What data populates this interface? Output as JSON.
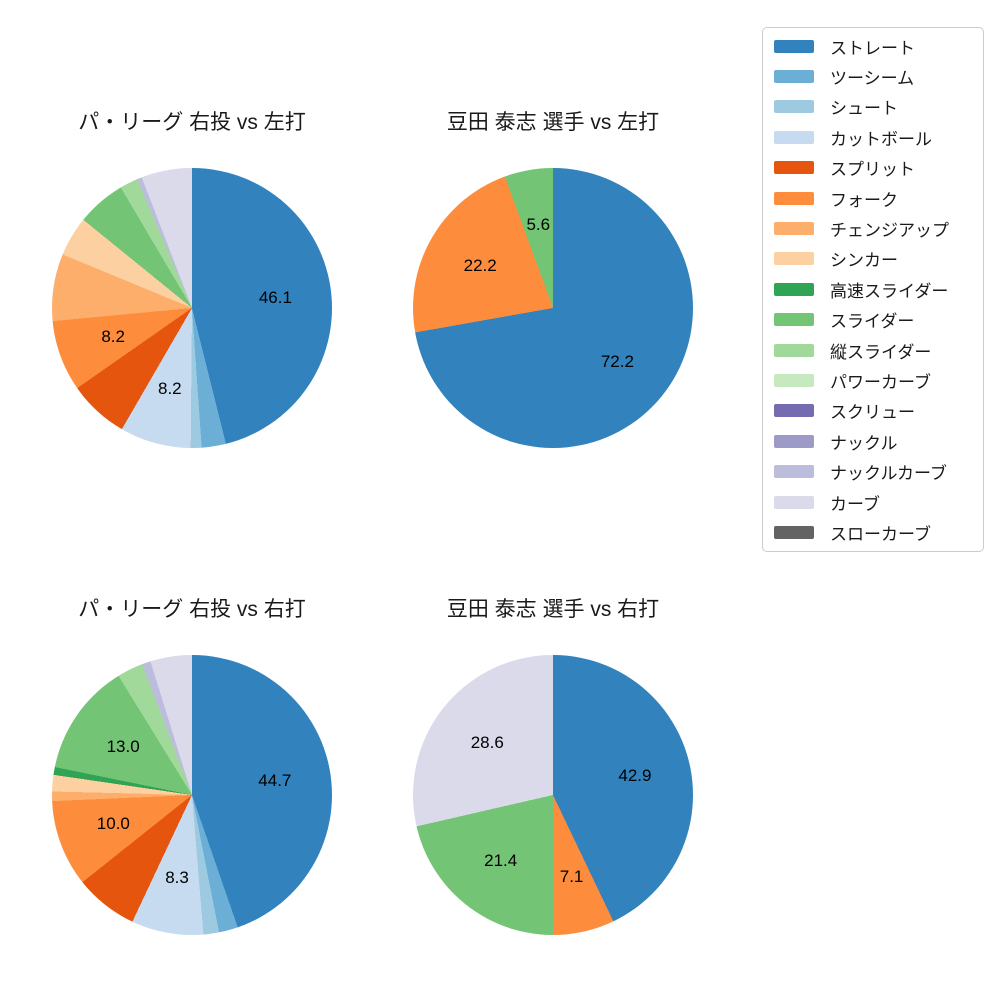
{
  "palette": {
    "ストレート": "#3182bd",
    "ツーシーム": "#6baed6",
    "シュート": "#9ecae1",
    "カットボール": "#c6dbef",
    "スプリット": "#e6550d",
    "フォーク": "#fd8d3c",
    "チェンジアップ": "#fdae6b",
    "シンカー": "#fdd0a2",
    "高速スライダー": "#31a354",
    "スライダー": "#74c476",
    "縦スライダー": "#a1d99b",
    "パワーカーブ": "#c7e9c0",
    "スクリュー": "#756bb1",
    "ナックル": "#9e9ac8",
    "ナックルカーブ": "#bcbddc",
    "カーブ": "#dadaeb",
    "スローカーブ": "#636363"
  },
  "legend": {
    "entries": [
      "ストレート",
      "ツーシーム",
      "シュート",
      "カットボール",
      "スプリット",
      "フォーク",
      "チェンジアップ",
      "シンカー",
      "高速スライダー",
      "スライダー",
      "縦スライダー",
      "パワーカーブ",
      "スクリュー",
      "ナックル",
      "ナックルカーブ",
      "カーブ",
      "スローカーブ"
    ]
  },
  "chart_data": [
    {
      "type": "pie",
      "title": "パ・リーグ 右投 vs 左打",
      "start_angle": "12-oclock",
      "direction": "clockwise",
      "slices": [
        {
          "label": "ストレート",
          "value": 46.1,
          "value_label": "46.1"
        },
        {
          "label": "ツーシーム",
          "value": 2.8,
          "value_label": null
        },
        {
          "label": "シュート",
          "value": 1.25,
          "value_label": null
        },
        {
          "label": "カットボール",
          "value": 8.2,
          "value_label": "8.2"
        },
        {
          "label": "スプリット",
          "value": 6.95,
          "value_label": null
        },
        {
          "label": "フォーク",
          "value": 8.2,
          "value_label": "8.2"
        },
        {
          "label": "チェンジアップ",
          "value": 7.75,
          "value_label": null
        },
        {
          "label": "シンカー",
          "value": 4.6,
          "value_label": null
        },
        {
          "label": "スライダー",
          "value": 5.65,
          "value_label": null
        },
        {
          "label": "縦スライダー",
          "value": 2.1,
          "value_label": null
        },
        {
          "label": "ナックルカーブ",
          "value": 0.55,
          "value_label": null
        },
        {
          "label": "カーブ",
          "value": 5.85,
          "value_label": null
        }
      ]
    },
    {
      "type": "pie",
      "title": "豆田 泰志 選手 vs 左打",
      "start_angle": "12-oclock",
      "direction": "clockwise",
      "slices": [
        {
          "label": "ストレート",
          "value": 72.2,
          "value_label": "72.2"
        },
        {
          "label": "フォーク",
          "value": 22.2,
          "value_label": "22.2"
        },
        {
          "label": "スライダー",
          "value": 5.6,
          "value_label": "5.6"
        }
      ]
    },
    {
      "type": "pie",
      "title": "パ・リーグ 右投 vs 右打",
      "start_angle": "12-oclock",
      "direction": "clockwise",
      "slices": [
        {
          "label": "ストレート",
          "value": 44.7,
          "value_label": "44.7"
        },
        {
          "label": "ツーシーム",
          "value": 2.2,
          "value_label": null
        },
        {
          "label": "シュート",
          "value": 1.8,
          "value_label": null
        },
        {
          "label": "カットボール",
          "value": 8.3,
          "value_label": "8.3"
        },
        {
          "label": "スプリット",
          "value": 7.3,
          "value_label": null
        },
        {
          "label": "フォーク",
          "value": 10.0,
          "value_label": "10.0"
        },
        {
          "label": "チェンジアップ",
          "value": 1.1,
          "value_label": null
        },
        {
          "label": "シンカー",
          "value": 1.9,
          "value_label": null
        },
        {
          "label": "高速スライダー",
          "value": 0.9,
          "value_label": null
        },
        {
          "label": "スライダー",
          "value": 13.0,
          "value_label": "13.0"
        },
        {
          "label": "縦スライダー",
          "value": 3.0,
          "value_label": null
        },
        {
          "label": "ナックルカーブ",
          "value": 1.0,
          "value_label": null
        },
        {
          "label": "カーブ",
          "value": 4.8,
          "value_label": null
        }
      ]
    },
    {
      "type": "pie",
      "title": "豆田 泰志 選手 vs 右打",
      "start_angle": "12-oclock",
      "direction": "clockwise",
      "slices": [
        {
          "label": "ストレート",
          "value": 42.9,
          "value_label": "42.9"
        },
        {
          "label": "フォーク",
          "value": 7.1,
          "value_label": "7.1"
        },
        {
          "label": "スライダー",
          "value": 21.4,
          "value_label": "21.4"
        },
        {
          "label": "カーブ",
          "value": 28.6,
          "value_label": "28.6"
        }
      ]
    }
  ]
}
